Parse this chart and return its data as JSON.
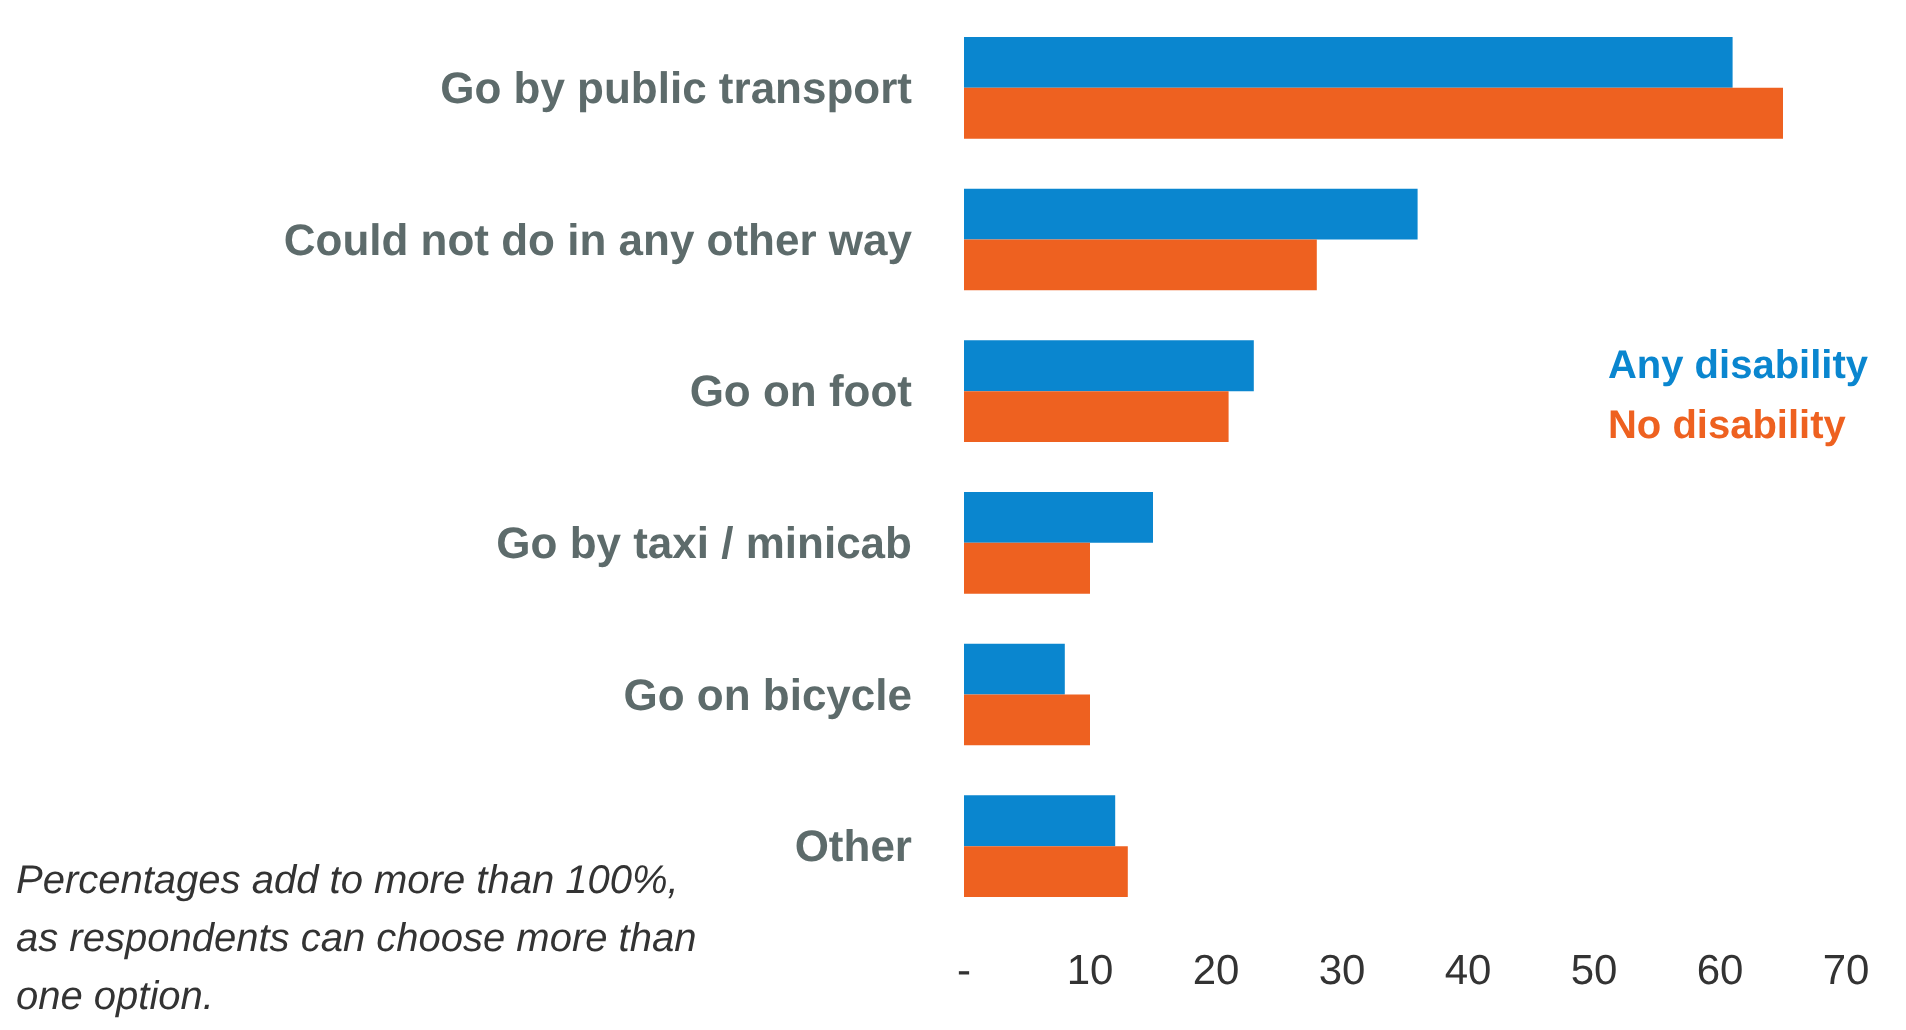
{
  "chart_data": {
    "type": "bar",
    "orientation": "horizontal",
    "categories": [
      "Go by public transport",
      "Could not do in any other way",
      "Go on foot",
      "Go by taxi / minicab",
      "Go on bicycle",
      "Other"
    ],
    "series": [
      {
        "name": "Any disability",
        "color": "#0a86cf",
        "values": [
          61,
          36,
          23,
          15,
          8,
          12
        ]
      },
      {
        "name": "No disability",
        "color": "#ee6120",
        "values": [
          65,
          28,
          21,
          10,
          10,
          13
        ]
      }
    ],
    "xlim": [
      0,
      70
    ],
    "xticks": [
      {
        "value": 0,
        "label": "-"
      },
      10,
      20,
      30,
      40,
      50,
      60,
      70
    ],
    "grid": false,
    "legend": "right",
    "annotations": [
      "Percentages add to more than 100%, as respondents can choose more than one option."
    ]
  }
}
